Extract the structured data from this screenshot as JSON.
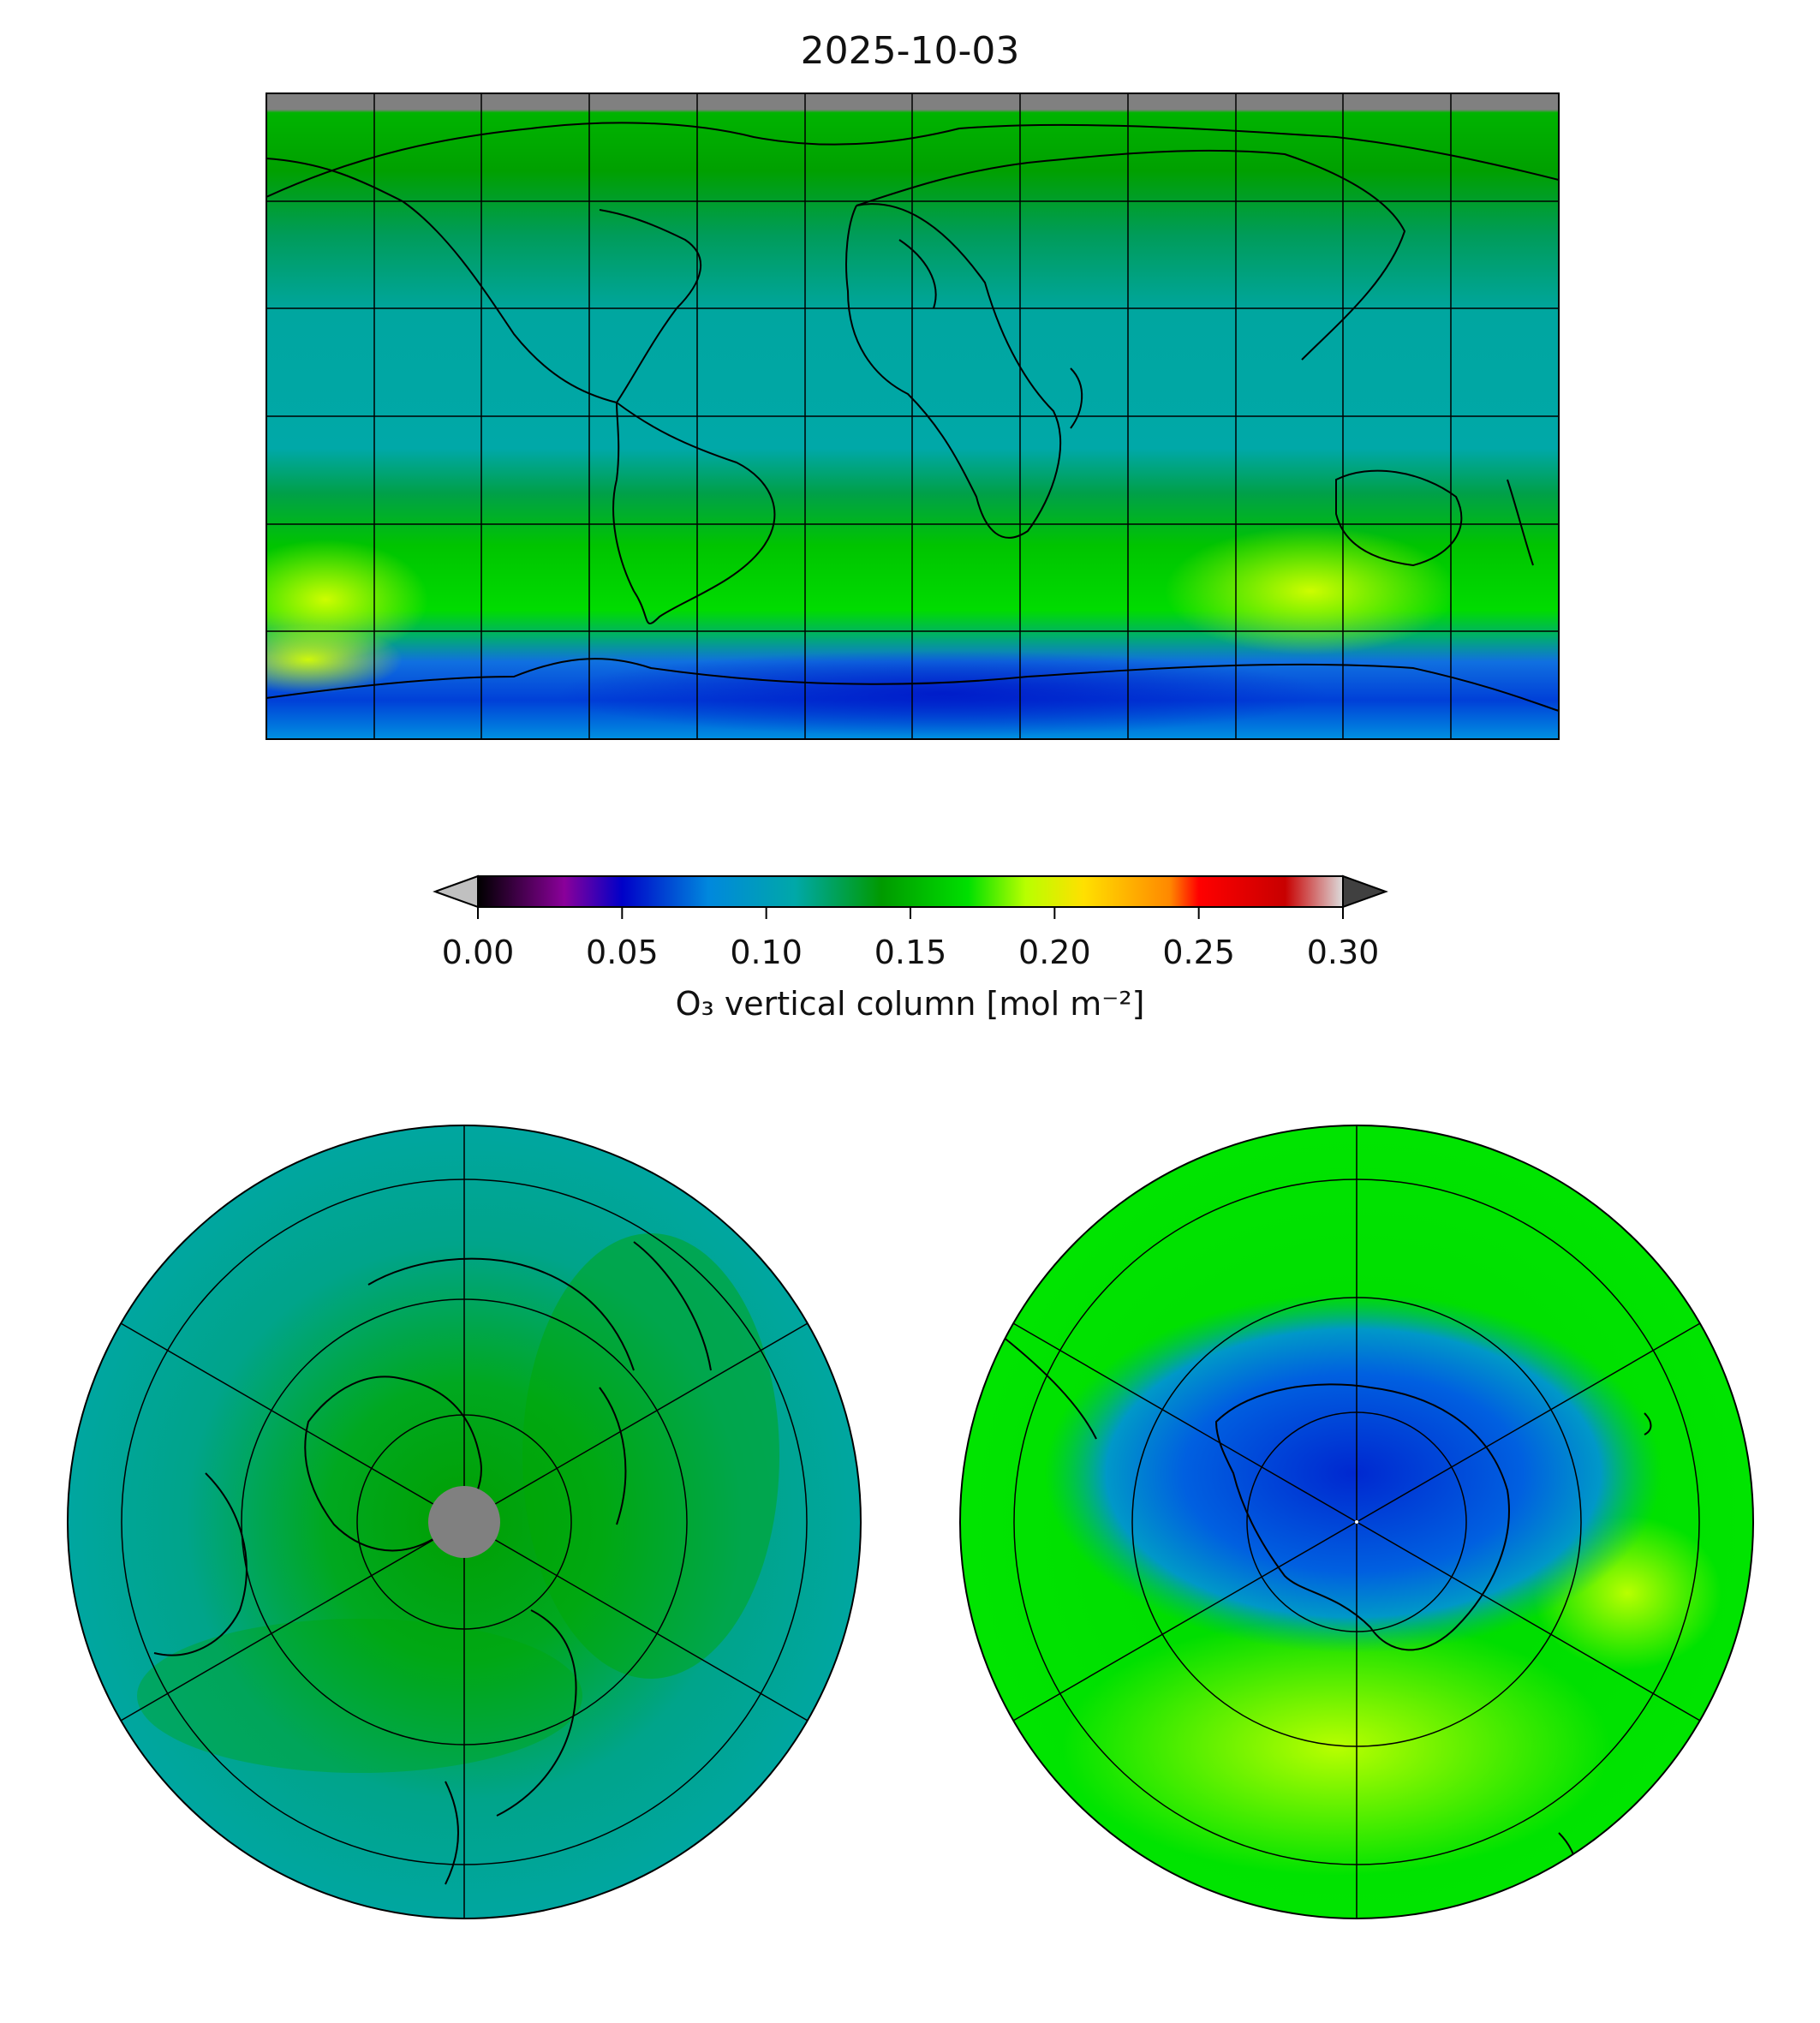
{
  "title": "2025-10-03",
  "colorbar": {
    "label": "O₃ vertical column [mol m⁻²]",
    "min": 0.0,
    "max": 0.3,
    "ticks": [
      "0.00",
      "0.05",
      "0.10",
      "0.15",
      "0.20",
      "0.25",
      "0.30"
    ],
    "extend": "both",
    "colormap_stops": [
      {
        "value": 0.0,
        "color": "#000000"
      },
      {
        "value": 0.03,
        "color": "#8a009a"
      },
      {
        "value": 0.05,
        "color": "#0000c8"
      },
      {
        "value": 0.08,
        "color": "#0088dd"
      },
      {
        "value": 0.11,
        "color": "#00a8a8"
      },
      {
        "value": 0.14,
        "color": "#009a00"
      },
      {
        "value": 0.17,
        "color": "#00e000"
      },
      {
        "value": 0.19,
        "color": "#b8ff00"
      },
      {
        "value": 0.21,
        "color": "#ffe000"
      },
      {
        "value": 0.24,
        "color": "#ff8800"
      },
      {
        "value": 0.25,
        "color": "#ff0000"
      },
      {
        "value": 0.28,
        "color": "#c80000"
      },
      {
        "value": 0.3,
        "color": "#dcdcdc"
      }
    ],
    "under_color": "#c0c0c0",
    "over_color": "#404040"
  },
  "maps": [
    {
      "name": "global",
      "projection": "equirectangular",
      "gridlines": true
    },
    {
      "name": "north-pole",
      "projection": "north-polar-stereographic",
      "gridlines": true
    },
    {
      "name": "south-pole",
      "projection": "south-polar-stereographic",
      "gridlines": true
    }
  ]
}
